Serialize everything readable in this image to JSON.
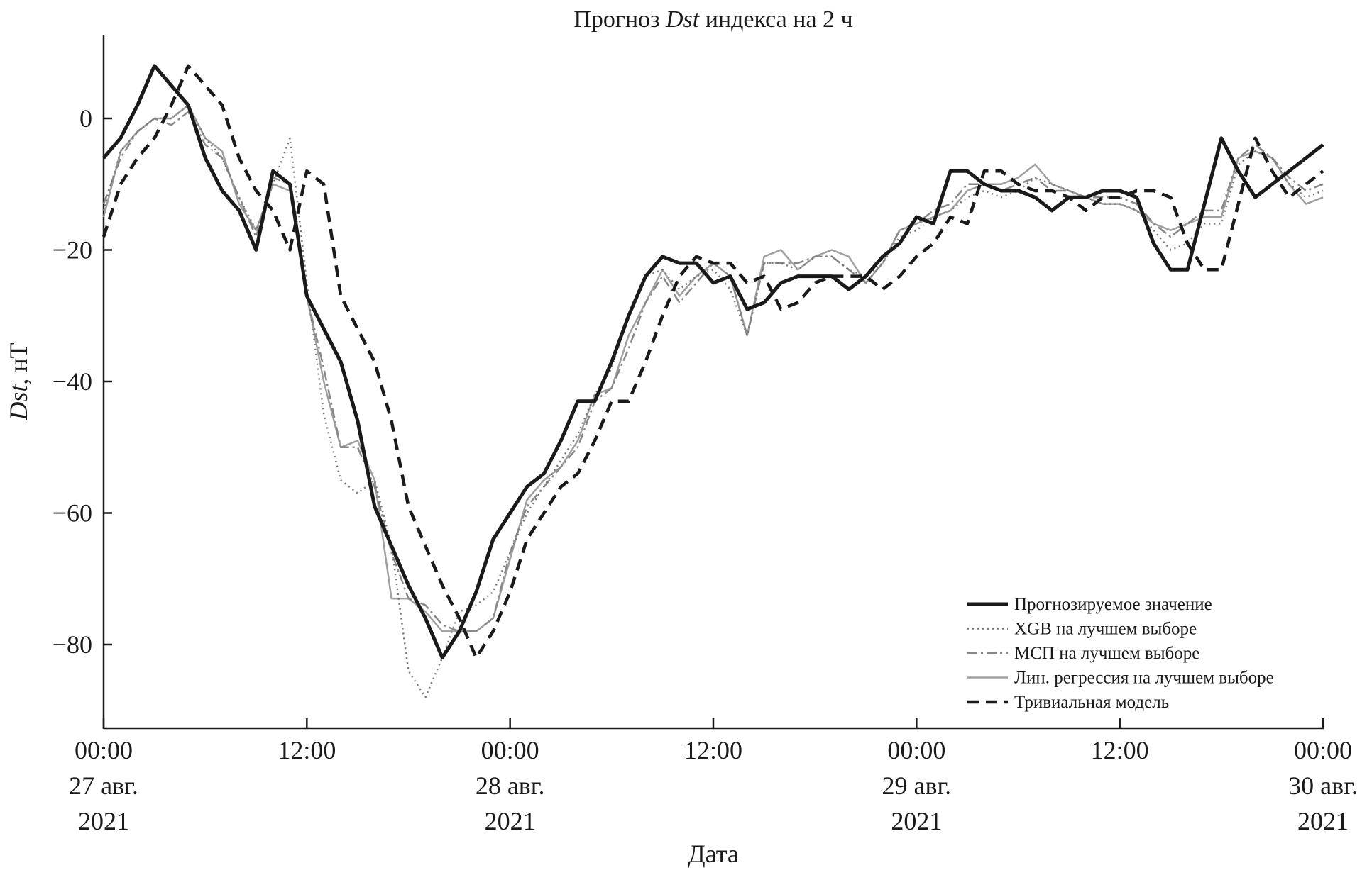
{
  "chart_data": {
    "type": "line",
    "title_prefix": "Прогноз ",
    "title_italic": "Dst",
    "title_suffix": " индекса на 2 ч",
    "ylabel_italic": "Dst",
    "ylabel_suffix": ", нТ",
    "xlabel": "Дата",
    "ylim": [
      -93,
      12
    ],
    "xlim": [
      0,
      72
    ],
    "x_unit": "hours since 27 авг. 2021 00:00",
    "yticks": [
      0,
      -20,
      -40,
      -60,
      -80
    ],
    "ytick_labels": [
      "0",
      "−20",
      "−40",
      "−60",
      "−80"
    ],
    "xticks": [
      {
        "hour": 0,
        "lines": [
          "00:00",
          "27 авг.",
          "2021"
        ]
      },
      {
        "hour": 12,
        "lines": [
          "12:00"
        ]
      },
      {
        "hour": 24,
        "lines": [
          "00:00",
          "28 авг.",
          "2021"
        ]
      },
      {
        "hour": 36,
        "lines": [
          "12:00"
        ]
      },
      {
        "hour": 48,
        "lines": [
          "00:00",
          "29 авг.",
          "2021"
        ]
      },
      {
        "hour": 60,
        "lines": [
          "12:00"
        ]
      },
      {
        "hour": 72,
        "lines": [
          "00:00",
          "30 авг.",
          "2021"
        ]
      }
    ],
    "grid": false,
    "legend_position": "bottom-right",
    "series": [
      {
        "name": "Прогнозируемое значение",
        "style": "solid-thick",
        "color": "#1a1a1a",
        "values": [
          -6,
          -3,
          2,
          8,
          5,
          2,
          -6,
          -11,
          -14,
          -20,
          -8,
          -10,
          -27,
          -32,
          -37,
          -46,
          -59,
          -65,
          -71,
          -76,
          -82,
          -78,
          -72,
          -64,
          -60,
          -56,
          -54,
          -49,
          -43,
          -43,
          -37,
          -30,
          -24,
          -21,
          -22,
          -22,
          -25,
          -24,
          -29,
          -28,
          -25,
          -24,
          -24,
          -24,
          -26,
          -24,
          -21,
          -19,
          -15,
          -16,
          -8,
          -8,
          -10,
          -11,
          -11,
          -12,
          -14,
          -12,
          -12,
          -11,
          -11,
          -12,
          -19,
          -23,
          -23,
          -13,
          -3,
          -8,
          -12,
          -10,
          -8,
          -6,
          -4
        ]
      },
      {
        "name": "XGB на лучшем выборе",
        "style": "dotted",
        "color": "#777777",
        "values": [
          -14,
          -5,
          -2,
          0,
          0,
          2,
          -3,
          -6,
          -12,
          -17,
          -10,
          -3,
          -25,
          -45,
          -55,
          -57,
          -55,
          -65,
          -84,
          -88,
          -82,
          -75,
          -74,
          -72,
          -66,
          -60,
          -56,
          -52,
          -48,
          -42,
          -38,
          -30,
          -24,
          -23,
          -26,
          -24,
          -23,
          -26,
          -33,
          -22,
          -22,
          -23,
          -21,
          -21,
          -23,
          -24,
          -22,
          -18,
          -17,
          -15,
          -14,
          -12,
          -11,
          -12,
          -11,
          -9,
          -10,
          -11,
          -12,
          -13,
          -13,
          -14,
          -17,
          -20,
          -19,
          -16,
          -16,
          -7,
          -5,
          -6,
          -10,
          -12,
          -11
        ]
      },
      {
        "name": "МСП на лучшем выборе",
        "style": "dash-dot",
        "color": "#888888",
        "values": [
          -13,
          -6,
          -2,
          0,
          -1,
          1,
          -4,
          -6,
          -12,
          -18,
          -9,
          -10,
          -27,
          -38,
          -50,
          -50,
          -56,
          -66,
          -73,
          -74,
          -77,
          -78,
          -78,
          -76,
          -66,
          -59,
          -56,
          -53,
          -50,
          -43,
          -41,
          -35,
          -28,
          -24,
          -28,
          -25,
          -22,
          -24,
          -33,
          -22,
          -22,
          -22,
          -21,
          -21,
          -23,
          -25,
          -22,
          -17,
          -16,
          -14,
          -13,
          -10,
          -10,
          -11,
          -10,
          -9,
          -11,
          -11,
          -12,
          -12,
          -12,
          -13,
          -16,
          -18,
          -16,
          -14,
          -14,
          -6,
          -4,
          -6,
          -9,
          -11,
          -10
        ]
      },
      {
        "name": "Лин. регрессия на лучшем выборе",
        "style": "solid-thin",
        "color": "#a0a0a0",
        "values": [
          -15,
          -5,
          -2,
          0,
          0,
          2,
          -3,
          -5,
          -13,
          -17,
          -10,
          -11,
          -27,
          -40,
          -50,
          -49,
          -55,
          -73,
          -73,
          -75,
          -78,
          -78,
          -78,
          -76,
          -67,
          -58,
          -55,
          -53,
          -49,
          -42,
          -41,
          -33,
          -28,
          -23,
          -27,
          -24,
          -22,
          -24,
          -33,
          -21,
          -20,
          -23,
          -21,
          -20,
          -21,
          -25,
          -22,
          -17,
          -16,
          -15,
          -14,
          -11,
          -10,
          -10,
          -9,
          -7,
          -10,
          -11,
          -12,
          -13,
          -13,
          -14,
          -16,
          -17,
          -16,
          -15,
          -15,
          -6,
          -5,
          -6,
          -10,
          -13,
          -12
        ]
      },
      {
        "name": "Тривиальная модель",
        "style": "dashed",
        "color": "#1a1a1a",
        "values": [
          -18,
          -10,
          -6,
          -3,
          2,
          8,
          5,
          2,
          -6,
          -11,
          -14,
          -20,
          -8,
          -10,
          -27,
          -32,
          -37,
          -46,
          -59,
          -65,
          -71,
          -76,
          -82,
          -78,
          -72,
          -64,
          -60,
          -56,
          -54,
          -49,
          -43,
          -43,
          -37,
          -30,
          -24,
          -21,
          -22,
          -22,
          -25,
          -24,
          -29,
          -28,
          -25,
          -24,
          -24,
          -24,
          -26,
          -24,
          -21,
          -19,
          -15,
          -16,
          -8,
          -8,
          -10,
          -11,
          -11,
          -12,
          -14,
          -12,
          -12,
          -11,
          -11,
          -12,
          -19,
          -23,
          -23,
          -13,
          -3,
          -8,
          -12,
          -10,
          -8
        ]
      }
    ]
  }
}
